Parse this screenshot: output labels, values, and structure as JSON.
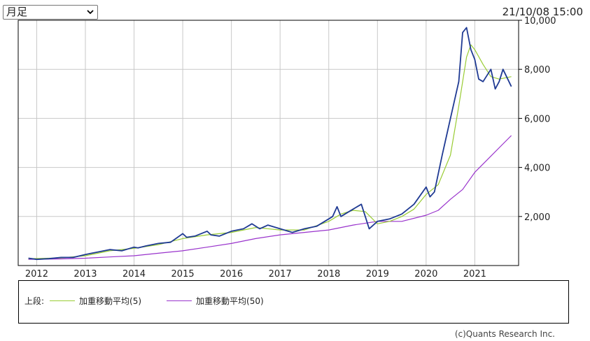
{
  "controls": {
    "period_select": "月足",
    "period_options": [
      "月足"
    ]
  },
  "timestamp": "21/10/08 15:00",
  "legend": {
    "prefix": "上段:",
    "ma5_label": "加重移動平均(5)",
    "ma50_label": "加重移動平均(50)"
  },
  "copyright": "(c)Quants Research Inc.",
  "colors": {
    "price": "#1f3a93",
    "ma5": "#99cc33",
    "ma50": "#9933cc",
    "grid": "#c8c8c8",
    "axis": "#000000"
  },
  "chart_data": {
    "type": "line",
    "x_labels": [
      "2012",
      "2013",
      "2014",
      "2015",
      "2016",
      "2017",
      "2018",
      "2019",
      "2020",
      "2021"
    ],
    "x_range": [
      2011.62,
      2021.9
    ],
    "y_range": [
      0,
      10000
    ],
    "y_ticks": [
      2000,
      4000,
      6000,
      8000,
      10000
    ],
    "y_tick_labels": [
      "2,000",
      "4,000",
      "6,000",
      "8,000",
      "10,000"
    ],
    "grid": true,
    "series": [
      {
        "name": "",
        "role": "price",
        "x": [
          2011.83,
          2012.0,
          2012.25,
          2012.5,
          2012.75,
          2013.0,
          2013.25,
          2013.5,
          2013.75,
          2014.0,
          2014.08,
          2014.25,
          2014.5,
          2014.75,
          2015.0,
          2015.08,
          2015.25,
          2015.5,
          2015.58,
          2015.75,
          2016.0,
          2016.25,
          2016.42,
          2016.58,
          2016.75,
          2017.0,
          2017.25,
          2017.5,
          2017.75,
          2018.0,
          2018.08,
          2018.17,
          2018.25,
          2018.5,
          2018.67,
          2018.75,
          2018.83,
          2019.0,
          2019.25,
          2019.5,
          2019.75,
          2020.0,
          2020.08,
          2020.17,
          2020.33,
          2020.5,
          2020.67,
          2020.75,
          2020.83,
          2020.92,
          2021.0,
          2021.08,
          2021.17,
          2021.33,
          2021.42,
          2021.5,
          2021.58,
          2021.75,
          2021.75
        ],
        "y": [
          300,
          250,
          280,
          330,
          330,
          450,
          550,
          650,
          600,
          750,
          720,
          800,
          900,
          950,
          1300,
          1150,
          1200,
          1400,
          1250,
          1200,
          1400,
          1500,
          1700,
          1500,
          1650,
          1500,
          1350,
          1500,
          1600,
          1900,
          2000,
          2400,
          2000,
          2300,
          2500,
          2000,
          1500,
          1800,
          1900,
          2100,
          2500,
          3200,
          2800,
          3000,
          4500,
          6000,
          7500,
          9500,
          9700,
          8800,
          8400,
          7600,
          7500,
          8000,
          7200,
          7500,
          8000,
          7300,
          7300
        ]
      },
      {
        "name": "加重移動平均(5)",
        "role": "ma5",
        "x": [
          2011.83,
          2012.5,
          2013.0,
          2013.5,
          2014.0,
          2014.5,
          2015.0,
          2015.5,
          2016.0,
          2016.5,
          2017.0,
          2017.5,
          2018.0,
          2018.25,
          2018.5,
          2018.75,
          2019.0,
          2019.25,
          2019.5,
          2019.75,
          2020.0,
          2020.25,
          2020.5,
          2020.67,
          2020.83,
          2020.92,
          2021.0,
          2021.17,
          2021.33,
          2021.5,
          2021.75
        ],
        "y": [
          280,
          310,
          400,
          600,
          700,
          850,
          1100,
          1250,
          1350,
          1550,
          1450,
          1450,
          1800,
          2100,
          2250,
          2200,
          1700,
          1800,
          2000,
          2300,
          2900,
          3300,
          4500,
          6500,
          8500,
          9000,
          8800,
          8200,
          7700,
          7600,
          7700
        ]
      },
      {
        "name": "加重移動平均(50)",
        "role": "ma50",
        "x": [
          2011.83,
          2012.5,
          2013.0,
          2013.5,
          2014.0,
          2014.5,
          2015.0,
          2015.5,
          2016.0,
          2016.5,
          2017.0,
          2017.5,
          2018.0,
          2018.5,
          2019.0,
          2019.5,
          2020.0,
          2020.25,
          2020.5,
          2020.75,
          2021.0,
          2021.25,
          2021.5,
          2021.75
        ],
        "y": [
          250,
          270,
          300,
          350,
          400,
          500,
          600,
          750,
          900,
          1100,
          1250,
          1350,
          1450,
          1650,
          1800,
          1800,
          2050,
          2250,
          2700,
          3100,
          3800,
          4300,
          4800,
          5300
        ]
      }
    ]
  }
}
